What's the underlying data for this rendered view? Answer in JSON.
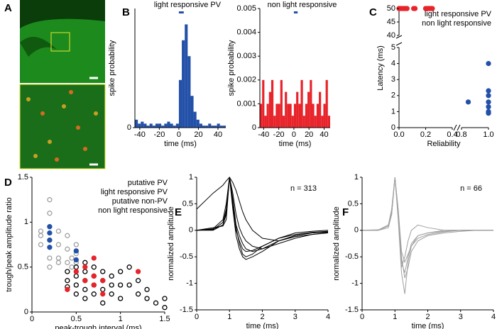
{
  "chart_data": [
    {
      "type": "image",
      "panel": "A"
    },
    {
      "type": "histogram",
      "panel": "B",
      "title": "light responsive PV",
      "color": "#2350a8",
      "x_label": "time (ms)",
      "y_label": "spike probability",
      "bins": [
        -45,
        -42,
        -39,
        -36,
        -33,
        -30,
        -27,
        -24,
        -21,
        -18,
        -15,
        -12,
        -9,
        -6,
        -3,
        0,
        3,
        6,
        9,
        12,
        15,
        18,
        21,
        24,
        27,
        30,
        33,
        36,
        39,
        42,
        45,
        48
      ],
      "values": [
        0.002,
        0.001,
        0.0015,
        0.001,
        0.0005,
        0.001,
        0.0005,
        0.001,
        0.001,
        0.0005,
        0.001,
        0.0015,
        0.001,
        0.0005,
        0.001,
        0.012,
        0.022,
        0.026,
        0.018,
        0.008,
        0.004,
        0.002,
        0.001,
        0.0005,
        0.0005,
        0.001,
        0.0005,
        0.0005,
        0.001,
        0.0005,
        0.0005
      ],
      "stimulus": [
        0,
        5
      ],
      "xlim": [
        -45,
        48
      ],
      "xticks": [
        -40,
        -20,
        0,
        20,
        40
      ],
      "ylim": [
        0,
        0.03
      ],
      "yticks": [
        0
      ]
    },
    {
      "type": "histogram",
      "title": "non light responsive",
      "color": "#e8232a",
      "x_label": "time (ms)",
      "y_label": "spike probability",
      "bins": [
        -45,
        -42,
        -39,
        -36,
        -33,
        -30,
        -27,
        -24,
        -21,
        -18,
        -15,
        -12,
        -9,
        -6,
        -3,
        0,
        3,
        6,
        9,
        12,
        15,
        18,
        21,
        24,
        27,
        30,
        33,
        36,
        39,
        42,
        45,
        48
      ],
      "values": [
        0.001,
        0.002,
        0.0005,
        0.001,
        0.0015,
        0.002,
        0.0005,
        0.001,
        0.001,
        0.002,
        0.0005,
        0.0015,
        0.001,
        0.001,
        0.0005,
        0.001,
        0.0015,
        0.001,
        0.002,
        0.0005,
        0.001,
        0.0015,
        0.002,
        0.001,
        0.0005,
        0.001,
        0.0015,
        0.0005,
        0.001,
        0.002,
        0.0005
      ],
      "stimulus": [
        0,
        5
      ],
      "xlim": [
        -45,
        48
      ],
      "xticks": [
        -40,
        -20,
        0,
        20,
        40
      ],
      "ylim": [
        0,
        0.005
      ],
      "yticks": [
        0,
        0.001,
        0.002,
        0.003,
        0.004,
        0.005
      ]
    },
    {
      "type": "scatter",
      "panel": "C",
      "x_label": "Reliability",
      "y_label": "Latency (ms)",
      "xlim": [
        0,
        1
      ],
      "xbreak": [
        0.4,
        0.8
      ],
      "ylim": [
        0,
        50
      ],
      "ybreak": [
        5,
        40
      ],
      "xticks": [
        {
          "value": 0,
          "label": "0.0"
        },
        0.2,
        0.4,
        0.8,
        {
          "value": 1,
          "label": "1.0"
        }
      ],
      "yticks": [
        0,
        1,
        2,
        3,
        4,
        5,
        40,
        45,
        50
      ],
      "legend": "upper right",
      "series": [
        {
          "name": "light responsive PV",
          "color": "#2350a8",
          "marker": "filled",
          "x": [
            0.85,
            1,
            1,
            1,
            1,
            1,
            1,
            1
          ],
          "values": [
            1.6,
            4,
            2.3,
            2,
            1.6,
            1.3,
            1,
            0.9
          ]
        },
        {
          "name": "non light responsive",
          "color": "#e8232a",
          "marker": "filled",
          "x": [
            0,
            0.01,
            0.02,
            0.03,
            0.04,
            0.05,
            0.06,
            0.11,
            0.12,
            0.2,
            0.21,
            0.22,
            0.23,
            0.24,
            0.25
          ],
          "values": [
            50,
            50,
            50,
            50,
            50,
            50,
            50,
            50,
            50,
            50,
            50,
            50,
            50,
            50,
            50
          ]
        }
      ]
    },
    {
      "type": "scatter",
      "panel": "D",
      "x_label": "peak-trough interval (ms)",
      "y_label": "trough/peak amplitude ratio",
      "xlim": [
        0,
        1.5
      ],
      "ylim": [
        0,
        1.5
      ],
      "xticks": [
        0,
        0.5,
        1,
        1.5
      ],
      "yticks": [
        0,
        0.5,
        1,
        1.5
      ],
      "legend": "upper right",
      "series": [
        {
          "name": "putative PV",
          "color": "#a0a0a0",
          "marker": "open",
          "x": [
            0.1,
            0.1,
            0.1,
            0.2,
            0.2,
            0.2,
            0.2,
            0.2,
            0.2,
            0.3,
            0.3,
            0.3,
            0.3,
            0.4,
            0.4,
            0.4,
            0.5,
            0.5,
            0.5,
            0.45,
            0.45
          ],
          "values": [
            0.9,
            0.85,
            0.75,
            1.25,
            1.1,
            0.95,
            0.8,
            0.6,
            0.5,
            0.9,
            0.75,
            0.6,
            0.55,
            0.85,
            0.7,
            0.55,
            0.75,
            0.65,
            0.55,
            0.6,
            0.5
          ]
        },
        {
          "name": "light responsive PV",
          "color": "#2350a8",
          "marker": "filled",
          "x": [
            0.2,
            0.2,
            0.2,
            0.2,
            0.5,
            0.5
          ],
          "values": [
            0.95,
            0.88,
            0.8,
            0.72,
            0.68,
            0.58
          ]
        },
        {
          "name": "putative non-PV",
          "color": "#000000",
          "marker": "open",
          "x": [
            0.4,
            0.4,
            0.4,
            0.5,
            0.5,
            0.5,
            0.5,
            0.6,
            0.6,
            0.6,
            0.6,
            0.6,
            0.7,
            0.7,
            0.7,
            0.7,
            0.8,
            0.8,
            0.8,
            0.8,
            0.9,
            0.9,
            0.9,
            1,
            1,
            1,
            1.1,
            1.1,
            1.2,
            1.2,
            1.3,
            1.3,
            1.4,
            1.5,
            1.5
          ],
          "values": [
            0.45,
            0.35,
            0.28,
            0.5,
            0.4,
            0.3,
            0.2,
            0.55,
            0.45,
            0.35,
            0.25,
            0.15,
            0.5,
            0.4,
            0.3,
            0.2,
            0.45,
            0.35,
            0.25,
            0.1,
            0.4,
            0.3,
            0.2,
            0.45,
            0.3,
            0.15,
            0.5,
            0.3,
            0.35,
            0.2,
            0.25,
            0.15,
            0.1,
            0.15,
            0.05
          ]
        },
        {
          "name": "non light responsive",
          "color": "#e8232a",
          "marker": "filled",
          "x": [
            0.4,
            0.5,
            0.6,
            0.6,
            0.7,
            0.7,
            0.7,
            0.8,
            0.8,
            1.2
          ],
          "values": [
            0.25,
            0.45,
            0.5,
            0.35,
            0.6,
            0.4,
            0.3,
            0.35,
            0.2,
            0.45
          ]
        }
      ]
    },
    {
      "type": "line",
      "panel": "E",
      "x_label": "time (ms)",
      "y_label": "normalized amplitude",
      "annotation": "n = 313",
      "xlim": [
        0,
        4
      ],
      "xticks": [
        0,
        1,
        2,
        3,
        4
      ],
      "ylim": [
        -1.5,
        1
      ],
      "yticks": [
        -1.5,
        -1,
        -0.5,
        0,
        0.5,
        1
      ],
      "x": [
        0,
        0.5,
        0.8,
        0.9,
        1,
        1.1,
        1.2,
        1.3,
        1.4,
        1.5,
        1.7,
        2,
        2.5,
        3,
        3.5,
        4
      ],
      "series": [
        {
          "color": "#000000",
          "values": [
            0,
            0.02,
            0.1,
            0.3,
            1,
            0.5,
            0,
            -0.2,
            -0.35,
            -0.4,
            -0.38,
            -0.3,
            -0.15,
            -0.08,
            -0.04,
            -0.02
          ]
        },
        {
          "color": "#000000",
          "values": [
            0,
            0.01,
            0.15,
            0.4,
            1,
            0.6,
            0.1,
            -0.1,
            -0.25,
            -0.35,
            -0.4,
            -0.35,
            -0.2,
            -0.1,
            -0.05,
            -0.03
          ]
        },
        {
          "color": "#000000",
          "values": [
            0,
            0.03,
            0.2,
            0.5,
            1,
            0.7,
            0.3,
            0.05,
            -0.1,
            -0.2,
            -0.3,
            -0.35,
            -0.25,
            -0.15,
            -0.08,
            -0.04
          ]
        },
        {
          "color": "#000000",
          "values": [
            0,
            0.05,
            0.08,
            0.2,
            1,
            0.4,
            -0.1,
            -0.35,
            -0.5,
            -0.55,
            -0.5,
            -0.4,
            -0.2,
            -0.1,
            -0.05,
            -0.02
          ]
        },
        {
          "color": "#000000",
          "values": [
            0.4,
            0.7,
            0.85,
            0.93,
            1,
            0.9,
            0.75,
            0.55,
            0.35,
            0.2,
            0,
            -0.15,
            -0.2,
            -0.12,
            -0.08,
            -0.05
          ]
        },
        {
          "color": "#000000",
          "values": [
            0,
            0,
            0.1,
            0.35,
            1,
            0.55,
            0.05,
            -0.25,
            -0.45,
            -0.5,
            -0.45,
            -0.3,
            -0.15,
            -0.05,
            -0.02,
            0
          ]
        }
      ]
    },
    {
      "type": "line",
      "panel": "F",
      "x_label": "time (ms)",
      "y_label": "normalized amplitude",
      "annotation": "n = 66",
      "xlim": [
        0,
        4
      ],
      "xticks": [
        0,
        1,
        2,
        3,
        4
      ],
      "ylim": [
        -1.5,
        1
      ],
      "yticks": [
        -1.5,
        -1,
        -0.5,
        0,
        0.5,
        1
      ],
      "x": [
        0,
        0.5,
        0.8,
        0.9,
        1,
        1.1,
        1.2,
        1.3,
        1.4,
        1.5,
        1.7,
        2,
        2.5,
        3,
        3.5,
        4
      ],
      "series": [
        {
          "color": "#a0a0a0",
          "values": [
            0,
            0,
            0.1,
            0.35,
            1,
            0.3,
            -0.6,
            -0.8,
            -0.5,
            -0.25,
            -0.1,
            -0.05,
            -0.02,
            0,
            0,
            0
          ]
        },
        {
          "color": "#a0a0a0",
          "values": [
            0,
            0,
            0.05,
            0.3,
            1,
            0.2,
            -0.8,
            -1.2,
            -0.6,
            -0.3,
            -0.1,
            -0.05,
            0,
            0,
            0,
            0
          ]
        },
        {
          "color": "#a0a0a0",
          "values": [
            0,
            0.01,
            0.1,
            0.4,
            1,
            0.4,
            -0.4,
            -0.6,
            -0.45,
            -0.3,
            -0.15,
            -0.08,
            -0.03,
            0,
            0,
            0
          ]
        },
        {
          "color": "#a0a0a0",
          "values": [
            0,
            0,
            0.08,
            0.3,
            1,
            0.25,
            -0.7,
            -0.5,
            -0.2,
            0,
            0.1,
            0.05,
            0,
            0,
            0,
            0
          ]
        },
        {
          "color": "#a0a0a0",
          "values": [
            0,
            0,
            0.1,
            0.3,
            1,
            0.35,
            -0.5,
            -0.9,
            -0.7,
            -0.4,
            -0.2,
            -0.1,
            -0.05,
            -0.02,
            0,
            0
          ]
        }
      ]
    }
  ]
}
